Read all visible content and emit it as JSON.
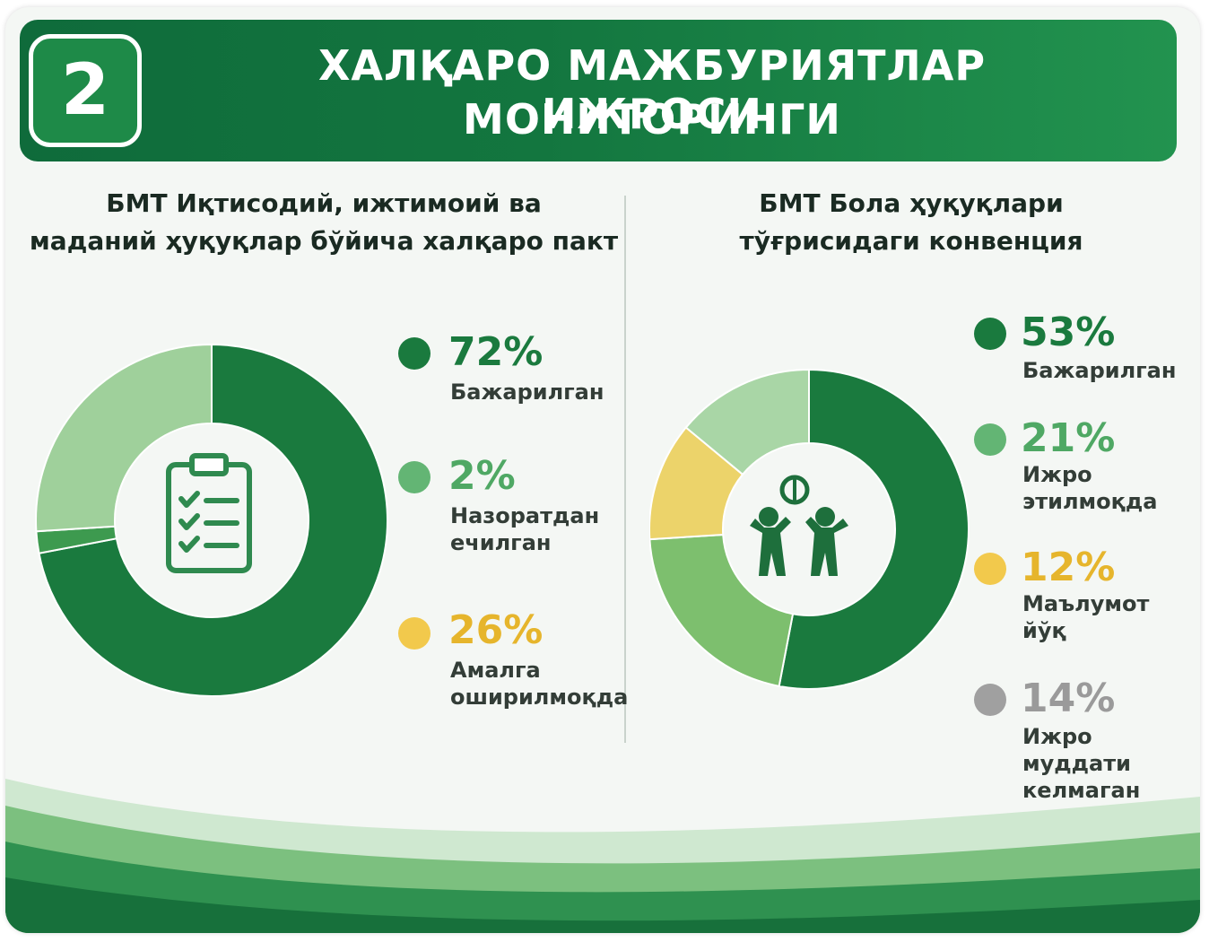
{
  "header": {
    "number": "2",
    "title_line1": "ХАЛҚАРО МАЖБУРИЯТЛАР ИЖРОСИ",
    "title_line2": "МОНИТОРИНГИ"
  },
  "colors": {
    "dark_green": "#1a7a3e",
    "light_green": "#63b574",
    "pale_green": "#a9d6a6",
    "yellow": "#f2c94c",
    "grey": "#a0a0a0",
    "header_green": "#13763f"
  },
  "left_panel": {
    "title_line1": "БМТ Иқтисодий, ижтимоий ва",
    "title_line2": "маданий ҳуқуқлар бўйича халқаро пакт",
    "icon": "clipboard-checklist-icon",
    "legend": [
      {
        "pct": "72%",
        "label_lines": [
          "Бажарилган"
        ]
      },
      {
        "pct": "2%",
        "label_lines": [
          "Назоратдан",
          "ечилган"
        ]
      },
      {
        "pct": "26%",
        "label_lines": [
          "Амалга",
          "оширилмоқда"
        ]
      }
    ]
  },
  "right_panel": {
    "title_line1": "БМТ Бола ҳуқуқлари",
    "title_line2": "тўғрисидаги конвенция",
    "icon": "children-playing-icon",
    "legend": [
      {
        "pct": "53%",
        "label_lines": [
          "Бажарилган"
        ]
      },
      {
        "pct": "21%",
        "label_lines": [
          "Ижро",
          "этилмоқда"
        ]
      },
      {
        "pct": "12%",
        "label_lines": [
          "Маълумот",
          "йўқ"
        ]
      },
      {
        "pct": "14%",
        "label_lines": [
          "Ижро муддати",
          "келмаган"
        ]
      }
    ]
  },
  "chart_data": [
    {
      "type": "pie",
      "variant": "donut",
      "title": "БМТ Иқтисодий, ижтимоий ва маданий ҳуқуқлар бўйича халқаро пакт",
      "categories": [
        "Бажарилган",
        "Назоратдан ечилган",
        "Амалга оширилмоқда"
      ],
      "values": [
        72,
        2,
        26
      ],
      "legend_colors": [
        "#1a7a3e",
        "#63b574",
        "#f2c94c"
      ],
      "slice_colors": [
        "#1a7a3e",
        "#3d9a4f",
        "#9fd09b"
      ],
      "legend_position": "right"
    },
    {
      "type": "pie",
      "variant": "donut",
      "title": "БМТ Бола ҳуқуқлари тўғрисидаги конвенция",
      "categories": [
        "Бажарилган",
        "Ижро этилмоқда",
        "Маълумот йўқ",
        "Ижро муддати келмаган"
      ],
      "values": [
        53,
        21,
        12,
        14
      ],
      "legend_colors": [
        "#1a7a3e",
        "#63b574",
        "#f2c94c",
        "#a0a0a0"
      ],
      "slice_colors": [
        "#1a7a3e",
        "#7dbf6e",
        "#ecd36a",
        "#a9d6a6"
      ],
      "legend_position": "right"
    }
  ]
}
